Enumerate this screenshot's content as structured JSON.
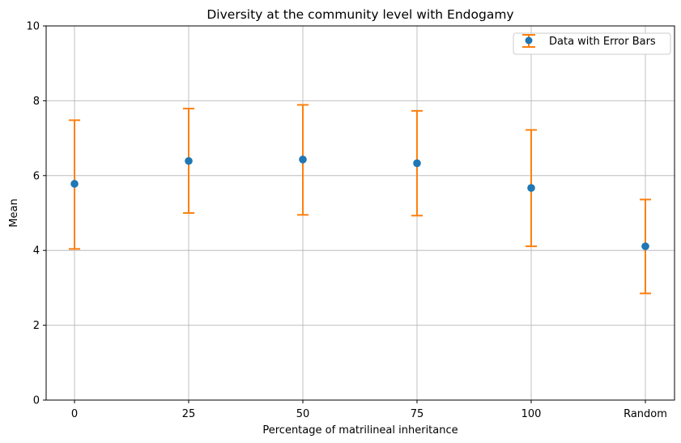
{
  "chart_data": {
    "type": "scatter",
    "title": "Diversity at the community level with Endogamy",
    "xlabel": "Percentage of matrilineal inheritance",
    "ylabel": "Mean",
    "categories": [
      "0",
      "25",
      "50",
      "75",
      "100",
      "Random"
    ],
    "series": [
      {
        "name": "Data with Error Bars",
        "values": [
          5.78,
          6.39,
          6.43,
          6.33,
          5.67,
          4.11
        ],
        "error_low": [
          4.04,
          5.0,
          4.95,
          4.93,
          4.11,
          2.85
        ],
        "error_high": [
          7.48,
          7.79,
          7.89,
          7.73,
          7.22,
          5.36
        ],
        "marker_color": "#1f77b4",
        "errorbar_color": "#ff7f0e"
      }
    ],
    "ylim": [
      0,
      10
    ],
    "yticks": [
      "0",
      "2",
      "4",
      "6",
      "8",
      "10"
    ],
    "grid": true,
    "legend_position": "top-right"
  }
}
